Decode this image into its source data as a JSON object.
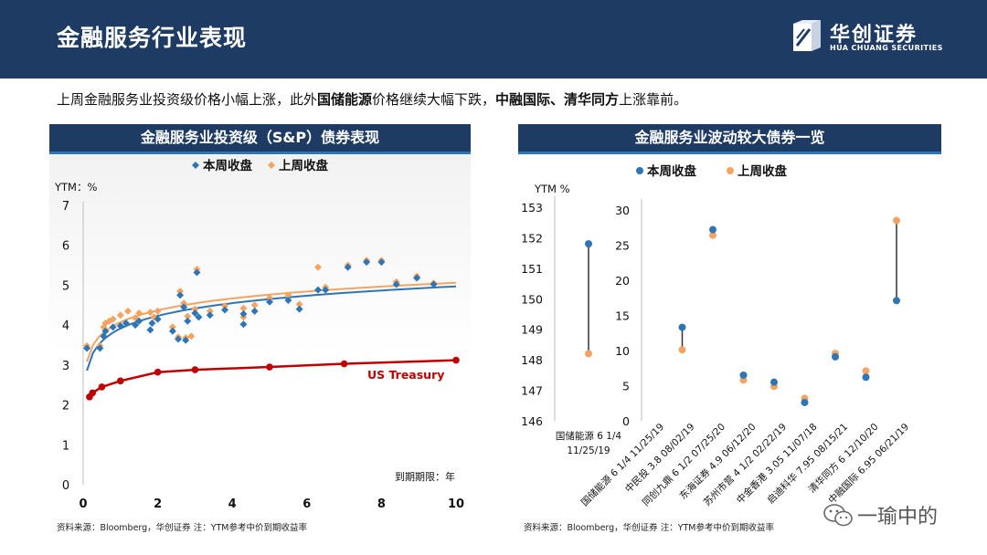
{
  "header": {
    "title": "金融服务行业表现",
    "logo_cn": "华创证券",
    "logo_en": "HUA CHUANG SECURITIES"
  },
  "summary": {
    "p1": "上周金融服务业投资级价格小幅上涨，此外",
    "b1": "国储能源",
    "p2": "价格继续大幅下跌，",
    "b2": "中融国际、清华同方",
    "p3": "上涨靠前。"
  },
  "left_panel": {
    "title": "金融服务业投资级（S&P）债券表现",
    "source": "资料来源：Bloomberg，华创证券   注：YTM参考中价到期收益率"
  },
  "right_panel": {
    "title": "金融服务业波动较大债券一览",
    "source": "资料来源：Bloomberg，华创证券   注：YTM参考中价到期收益率"
  },
  "watermark": "一瑜中的",
  "colors": {
    "header": "#1e3b64",
    "this_week": "#2e75b6",
    "last_week": "#f4a460",
    "treasury": "#c00000"
  },
  "chart_data": [
    {
      "type": "scatter",
      "title": "金融服务业投资级（S&P）债券表现",
      "ylabel": "YTM：%",
      "xlabel": "到期期限：年",
      "xlim": [
        0,
        10
      ],
      "ylim": [
        0,
        7
      ],
      "xticks": [
        0,
        2,
        4,
        6,
        8,
        10
      ],
      "yticks": [
        0,
        1,
        2,
        3,
        4,
        5,
        6,
        7
      ],
      "legend": [
        "本周收盘",
        "上周收盘"
      ],
      "treasury_label": "US Treasury",
      "series": [
        {
          "name": "本周收盘",
          "points": [
            [
              0.1,
              3.42
            ],
            [
              0.45,
              3.42
            ],
            [
              0.55,
              3.72
            ],
            [
              0.6,
              3.85
            ],
            [
              0.8,
              3.95
            ],
            [
              1.0,
              3.98
            ],
            [
              1.15,
              4.05
            ],
            [
              1.4,
              4.0
            ],
            [
              1.5,
              4.1
            ],
            [
              1.8,
              3.88
            ],
            [
              1.85,
              4.05
            ],
            [
              2.0,
              4.15
            ],
            [
              2.4,
              3.85
            ],
            [
              2.55,
              3.65
            ],
            [
              2.6,
              4.75
            ],
            [
              2.7,
              4.45
            ],
            [
              2.75,
              3.62
            ],
            [
              2.8,
              4.1
            ],
            [
              3.0,
              4.3
            ],
            [
              3.05,
              5.32
            ],
            [
              3.1,
              4.2
            ],
            [
              3.4,
              4.25
            ],
            [
              3.8,
              4.38
            ],
            [
              4.3,
              4.02
            ],
            [
              4.3,
              4.28
            ],
            [
              4.6,
              4.35
            ],
            [
              5.0,
              4.58
            ],
            [
              5.5,
              4.62
            ],
            [
              5.8,
              4.4
            ],
            [
              6.3,
              4.88
            ],
            [
              6.5,
              4.88
            ],
            [
              7.1,
              5.45
            ],
            [
              7.6,
              5.58
            ],
            [
              8.0,
              5.58
            ],
            [
              8.4,
              5.02
            ],
            [
              8.95,
              5.18
            ],
            [
              9.4,
              5.02
            ]
          ]
        },
        {
          "name": "上周收盘",
          "points": [
            [
              0.1,
              3.48
            ],
            [
              0.45,
              3.48
            ],
            [
              0.55,
              3.95
            ],
            [
              0.6,
              4.05
            ],
            [
              0.7,
              4.1
            ],
            [
              0.8,
              4.15
            ],
            [
              1.0,
              4.25
            ],
            [
              1.2,
              4.35
            ],
            [
              1.4,
              4.18
            ],
            [
              1.5,
              4.3
            ],
            [
              1.8,
              4.32
            ],
            [
              1.9,
              4.2
            ],
            [
              2.0,
              4.35
            ],
            [
              2.4,
              3.95
            ],
            [
              2.55,
              3.7
            ],
            [
              2.6,
              4.85
            ],
            [
              2.7,
              4.55
            ],
            [
              2.75,
              3.68
            ],
            [
              2.8,
              4.22
            ],
            [
              2.9,
              3.72
            ],
            [
              3.0,
              4.4
            ],
            [
              3.05,
              5.4
            ],
            [
              3.4,
              4.35
            ],
            [
              3.8,
              4.48
            ],
            [
              4.3,
              4.2
            ],
            [
              4.3,
              4.42
            ],
            [
              4.6,
              4.5
            ],
            [
              5.0,
              4.68
            ],
            [
              5.5,
              4.75
            ],
            [
              5.8,
              4.52
            ],
            [
              6.3,
              5.45
            ],
            [
              6.5,
              4.95
            ],
            [
              7.1,
              5.5
            ],
            [
              7.6,
              5.62
            ],
            [
              8.0,
              5.62
            ],
            [
              8.4,
              5.08
            ],
            [
              8.95,
              5.22
            ],
            [
              9.4,
              5.05
            ]
          ]
        },
        {
          "name": "US Treasury",
          "points": [
            [
              0.17,
              2.2
            ],
            [
              0.25,
              2.3
            ],
            [
              0.5,
              2.45
            ],
            [
              1.0,
              2.6
            ],
            [
              2.0,
              2.82
            ],
            [
              3.0,
              2.88
            ],
            [
              5.0,
              2.95
            ],
            [
              7.0,
              3.03
            ],
            [
              10.0,
              3.12
            ]
          ]
        }
      ]
    },
    {
      "type": "scatter",
      "title": "国储能源 6 1/4 11/25/19",
      "ylabel": "YTM %",
      "ylim": [
        146,
        153
      ],
      "yticks": [
        146,
        147,
        148,
        149,
        150,
        151,
        152,
        153
      ],
      "categories": [
        "国储能源 6 1/4 11/25/19"
      ],
      "series": [
        {
          "name": "本周收盘",
          "values": [
            151.8
          ]
        },
        {
          "name": "上周收盘",
          "values": [
            148.2
          ]
        }
      ]
    },
    {
      "type": "scatter",
      "title": "金融服务业波动较大债券一览",
      "legend": [
        "本周收盘",
        "上周收盘"
      ],
      "ylim": [
        0,
        30
      ],
      "yticks": [
        0,
        5,
        10,
        15,
        20,
        25,
        30
      ],
      "categories": [
        "国储能源 6 1/4 11/25/19",
        "中民投 3.8 08/02/19",
        "同创九鼎 6 1/2 07/25/20",
        "东海证券 4.9 06/12/20",
        "苏州市营 4 1/2 02/22/19",
        "中金香港 3.05 11/07/18",
        "启迪科华 7.95 08/15/21",
        "清华同方 6 12/10/20",
        "中融国际 6.95 06/21/19"
      ],
      "series": [
        {
          "name": "本周收盘",
          "values": [
            null,
            13.3,
            27.2,
            6.5,
            5.5,
            2.6,
            9.1,
            6.2,
            17.1
          ]
        },
        {
          "name": "上周收盘",
          "values": [
            null,
            10.1,
            26.4,
            5.8,
            4.9,
            3.2,
            9.6,
            7.1,
            28.5
          ]
        }
      ]
    }
  ]
}
